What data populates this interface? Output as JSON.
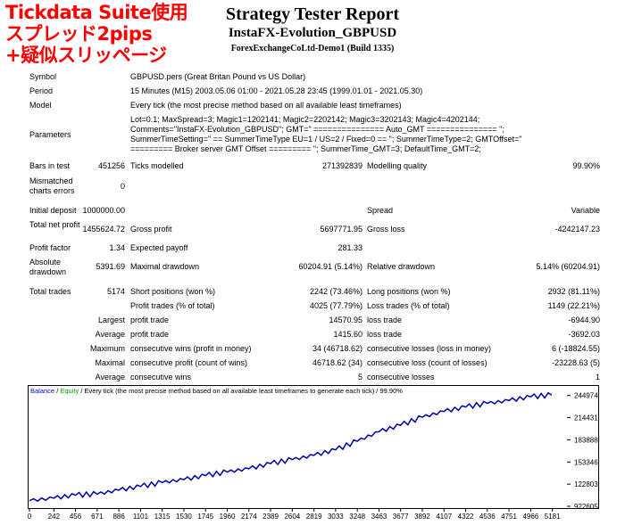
{
  "overlay": {
    "line1": "Tickdata Suite使用",
    "line2": "スプレッド2pips",
    "line3": "+疑似スリッページ"
  },
  "header": {
    "title": "Strategy Tester Report",
    "ea": "InstaFX-Evolution_GBPUSD",
    "server": "ForexExchangeCoLtd-Demo1 (Build 1335)"
  },
  "info": {
    "symbol_label": "Symbol",
    "symbol": "GBPUSD.pers (Great Britan Pound vs US Dollar)",
    "period_label": "Period",
    "period": "15 Minutes (M15) 2003.05.06 01:00 - 2021.05.28 23:45 (1999.01.01 - 2021.05.30)",
    "model_label": "Model",
    "model": "Every tick (the most precise method based on all available least timeframes)",
    "parameters_label": "Parameters",
    "parameters": "Lot=0.1; MaxSpread=3; Magic1=1202141; Magic2=2202142; Magic3=3202143; Magic4=4202144; Comments=\"InstaFX-Evolution_GBPUSD\"; GMT=\" =============== Auto_GMT =============== \"; SummerTimeSetting=\" == SummerTimeType EU=1 / US=2 / Fixed=0 == \"; SummerTimeType=2; GMTOffset=\" ========= Broker server GMT Offset ========= \"; SummerTime_GMT=3; DefaultTime_GMT=2;"
  },
  "stats": {
    "bars_label": "Bars in test",
    "bars": "451256",
    "ticks_label": "Ticks modelled",
    "ticks": "271392839",
    "quality_label": "Modelling quality",
    "quality": "99.90%",
    "mismatch_label": "Mismatched charts errors",
    "mismatch": "0",
    "deposit_label": "Initial deposit",
    "deposit": "1000000.00",
    "spread_label": "Spread",
    "spread": "Variable",
    "netprofit_label": "Total net profit",
    "netprofit": "1455624.72",
    "grossprofit_label": "Gross profit",
    "grossprofit": "5697771.95",
    "grossloss_label": "Gross loss",
    "grossloss": "-4242147.23",
    "pf_label": "Profit factor",
    "pf": "1.34",
    "ep_label": "Expected payoff",
    "ep": "281.33",
    "absdd_label": "Absolute drawdown",
    "absdd": "5391.69",
    "maxdd_label": "Maximal drawdown",
    "maxdd": "60204.91 (5.14%)",
    "reldd_label": "Relative drawdown",
    "reldd": "5.14% (60204.91)",
    "trades_label": "Total trades",
    "trades": "5174",
    "short_label": "Short positions (won %)",
    "short": "2242 (73.46%)",
    "long_label": "Long positions (won %)",
    "long": "2932 (81.11%)",
    "ptrades_label": "Profit trades (% of total)",
    "ptrades": "4025 (77.79%)",
    "ltrades_label": "Loss trades (% of total)",
    "ltrades": "1149 (22.21%)",
    "largest": "Largest",
    "average": "Average",
    "maximum": "Maximum",
    "maximal": "Maximal",
    "profittrade_label": "profit trade",
    "losstrade_label": "loss trade",
    "lg_profit": "14570.95",
    "lg_loss": "-6944.90",
    "av_profit": "1415.60",
    "av_loss": "-3692.03",
    "cw_money_label": "consecutive wins (profit in money)",
    "cw_money": "34 (46718.62)",
    "cl_money_label": "consecutive losses (loss in money)",
    "cl_money": "6 (-18824.55)",
    "cp_count_label": "consecutive profit (count of wins)",
    "cp_count": "46718.62 (34)",
    "cl_count_label": "consecutive loss (count of losses)",
    "cl_count": "-23228.63 (5)",
    "cw_label": "consecutive wins",
    "cw": "5",
    "cl_label": "consecutive losses",
    "cl": "1"
  },
  "legend": {
    "balance": "Balance",
    "sep": " / ",
    "equity": "Equity",
    "rest": " / Every tick (the most precise method based on all available least timeframes to generate each tick) / 99.90%"
  },
  "chart_data": {
    "type": "line",
    "title": "",
    "xlabel": "",
    "ylabel": "",
    "x_ticks": [
      "0",
      "242",
      "456",
      "671",
      "886",
      "1101",
      "1315",
      "1530",
      "1745",
      "1960",
      "2174",
      "2389",
      "2604",
      "2819",
      "3033",
      "3248",
      "3463",
      "3677",
      "3892",
      "4107",
      "4322",
      "4536",
      "4751",
      "4966",
      "5181"
    ],
    "y_ticks": [
      "922605",
      "1228032",
      "1533460",
      "1838888",
      "2144315",
      "2449743"
    ],
    "xlim": [
      0,
      5290
    ],
    "ylim": [
      922605,
      2520000
    ],
    "series": [
      {
        "name": "Balance",
        "color": "#0000aa",
        "x": [
          0,
          242,
          456,
          671,
          886,
          1101,
          1315,
          1530,
          1745,
          1960,
          2174,
          2389,
          2604,
          2819,
          3033,
          3248,
          3463,
          3677,
          3892,
          4107,
          4322,
          4536,
          4751,
          4966,
          5174
        ],
        "y": [
          1000000,
          1035000,
          1075000,
          1090000,
          1145000,
          1195000,
          1250000,
          1290000,
          1345000,
          1395000,
          1440000,
          1510000,
          1565000,
          1625000,
          1700000,
          1820000,
          1950000,
          2040000,
          2150000,
          2230000,
          2290000,
          2340000,
          2380000,
          2430000,
          2455625
        ]
      }
    ],
    "grid": false,
    "legend_position": "top-left"
  },
  "colors": {
    "overlay": "#ff0000",
    "balance": "#0000aa",
    "equity": "#00a000"
  }
}
